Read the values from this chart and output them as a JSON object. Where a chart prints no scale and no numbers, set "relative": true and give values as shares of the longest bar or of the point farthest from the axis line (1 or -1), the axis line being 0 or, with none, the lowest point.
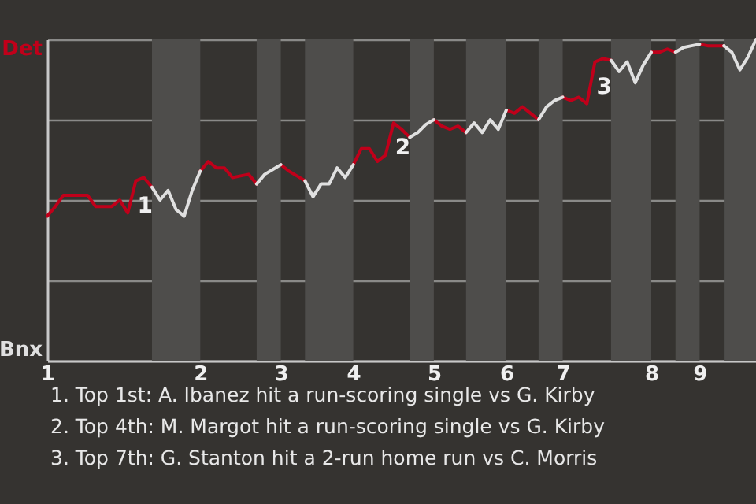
{
  "chart_data": {
    "type": "line",
    "relative": true,
    "categories": [
      "1",
      null,
      null,
      null,
      null,
      null,
      null,
      null,
      null,
      null,
      null,
      null,
      null,
      null,
      null,
      null,
      null,
      null,
      null,
      "2",
      null,
      null,
      null,
      null,
      null,
      null,
      null,
      null,
      null,
      "3",
      null,
      null,
      null,
      null,
      null,
      null,
      null,
      null,
      "4",
      null,
      null,
      null,
      null,
      null,
      null,
      null,
      null,
      null,
      "5",
      null,
      null,
      null,
      null,
      null,
      null,
      null,
      null,
      "6",
      null,
      null,
      null,
      null,
      null,
      null,
      "7",
      null,
      null,
      null,
      null,
      null,
      null,
      null,
      null,
      null,
      null,
      "8",
      null,
      null,
      null,
      null,
      null,
      "9",
      null,
      null,
      null,
      null,
      null,
      null,
      null
    ],
    "series": [
      {
        "color": "#c0001a",
        "values": [
          0.45,
          0.48,
          0.515,
          0.515,
          0.515,
          0.515,
          0.48,
          0.48,
          0.48,
          0.5,
          0.46,
          0.56,
          0.57,
          0.54,
          null,
          null,
          null,
          null,
          null,
          0.59,
          0.62,
          0.6,
          0.6,
          0.57,
          0.575,
          0.58,
          0.55,
          null,
          null,
          0.61,
          0.59,
          0.575,
          0.56,
          null,
          null,
          null,
          null,
          null,
          0.61,
          0.66,
          0.66,
          0.62,
          0.64,
          0.74,
          0.72,
          0.695,
          null,
          null,
          0.75,
          0.73,
          0.72,
          0.73,
          0.71,
          null,
          null,
          null,
          null,
          0.78,
          0.77,
          0.79,
          0.77,
          0.75,
          null,
          null,
          0.82,
          0.81,
          0.82,
          0.8,
          0.93,
          0.94,
          0.935,
          null,
          null,
          null,
          null,
          0.96,
          0.96,
          0.97,
          0.96,
          null,
          null,
          0.985,
          0.98,
          0.98,
          0.98,
          null,
          null,
          null,
          null
        ]
      },
      {
        "color": "#e0e0e0",
        "values": [
          null,
          null,
          null,
          null,
          null,
          null,
          null,
          null,
          null,
          null,
          null,
          null,
          null,
          0.54,
          0.5,
          0.53,
          0.47,
          0.45,
          0.53,
          0.59,
          null,
          null,
          null,
          null,
          null,
          null,
          0.55,
          0.58,
          0.595,
          0.61,
          null,
          null,
          0.56,
          0.51,
          0.55,
          0.55,
          0.6,
          0.57,
          0.61,
          null,
          null,
          null,
          null,
          null,
          null,
          0.695,
          0.71,
          0.735,
          0.75,
          null,
          null,
          null,
          0.71,
          0.74,
          0.71,
          0.75,
          0.72,
          0.78,
          null,
          null,
          null,
          0.75,
          0.79,
          0.81,
          0.82,
          null,
          null,
          null,
          null,
          null,
          0.935,
          0.9,
          0.93,
          0.865,
          0.92,
          0.96,
          null,
          null,
          0.96,
          0.975,
          0.98,
          0.985,
          null,
          null,
          0.98,
          0.96,
          0.905,
          0.945,
          1.0
        ]
      }
    ],
    "grid": "y",
    "annotations": [
      "Det",
      "Bnx",
      "1",
      "2",
      "3",
      "1. Top 1st: A. Ibanez hit a run-scoring single vs G. Kirby",
      "2. Top 4th: M. Margot hit a run-scoring single vs G. Kirby",
      "3. Top 7th: G. Stanton hit a 2-run home run vs C. Morris"
    ]
  }
}
